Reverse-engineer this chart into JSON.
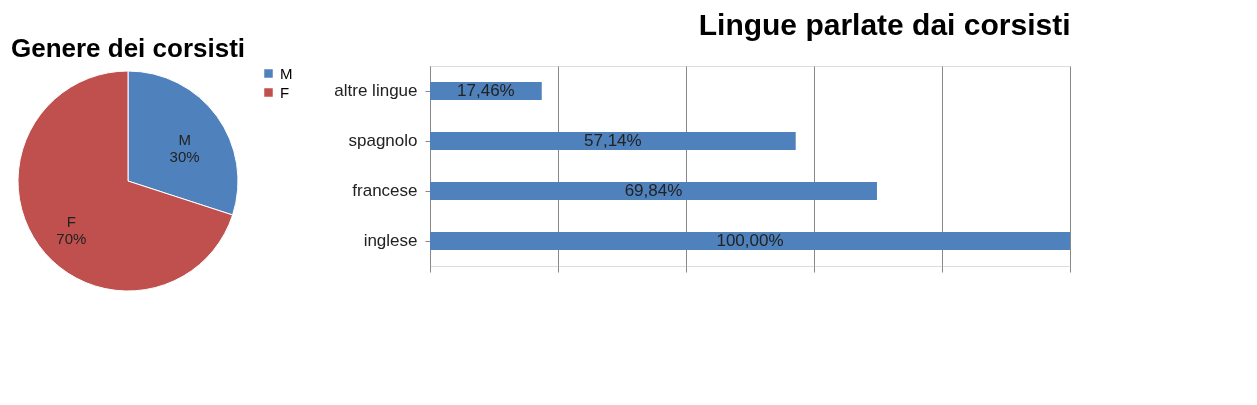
{
  "chart_data": [
    {
      "type": "pie",
      "title": "Genere dei corsisti",
      "categories": [
        "M",
        "F"
      ],
      "values": [
        30,
        70
      ],
      "colors": [
        "#4f81bd",
        "#c0504d"
      ],
      "value_labels": [
        "30%",
        "70%"
      ],
      "legend": "right"
    },
    {
      "type": "bar",
      "orientation": "horizontal",
      "title": "Lingue parlate dai corsisti",
      "categories": [
        "altre lingue",
        "spagnolo",
        "francese",
        "inglese"
      ],
      "values": [
        17.46,
        57.14,
        69.84,
        100
      ],
      "color": "#4f81bd",
      "value_labels": [
        "17,46%",
        "57,14%",
        "69,84%",
        "100,00%"
      ],
      "xlim": [
        0,
        100
      ],
      "xticks": [
        {
          "value": 0,
          "label": null
        },
        {
          "value": 20,
          "label": null
        },
        {
          "value": 40,
          "label": null
        },
        {
          "value": 60,
          "label": null
        },
        {
          "value": 80,
          "label": null
        },
        {
          "value": 100,
          "label": null
        }
      ],
      "grid": "x",
      "tick_labels": "y"
    }
  ]
}
